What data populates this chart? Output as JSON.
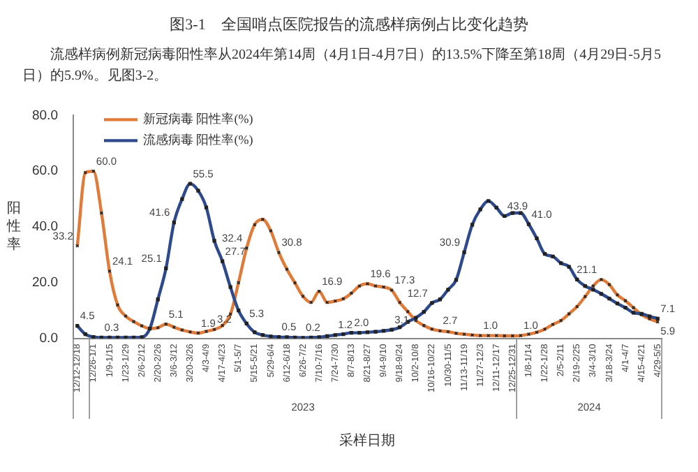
{
  "chart_data": {
    "type": "line",
    "title": "图3-1　全国哨点医院报告的流感样病例占比变化趋势",
    "subtitle": "流感样病例新冠病毒阳性率从2024年第14周（4月1日-4月7日）的13.5%下降至第18周（4月29日-5月5日）的5.9%。见图3-2。",
    "xlabel": "采样日期",
    "ylabel": "阳性率",
    "annotations": [
      "2023",
      "2024"
    ],
    "categories": [
      "12/12-12/18",
      null,
      "12/26-1/1",
      null,
      "1/9-1/15",
      null,
      "1/23-1/29",
      null,
      "2/6-2/12",
      null,
      "2/20-2/26",
      null,
      "3/6-3/12",
      null,
      "3/20-3/26",
      null,
      "4/3-4/9",
      null,
      "4/17-4/23",
      null,
      "5/1-5/7",
      null,
      "5/15-5/21",
      null,
      "5/29-6/4",
      null,
      "6/12-6/18",
      null,
      "6/26-7/2",
      null,
      "7/10-7/16",
      null,
      "7/24-7/30",
      null,
      "8/7-8/13",
      null,
      "8/21-8/27",
      null,
      "9/4-9/10",
      null,
      "9/18-9/24",
      null,
      "10/2-10/8",
      null,
      "10/16-10/22",
      null,
      "10/30-11/5",
      null,
      "11/13-11/19",
      null,
      "11/27-12/3",
      null,
      "12/11-12/17",
      null,
      "12/25-12/31",
      null,
      "1/8-1/14",
      null,
      "1/22-1/28",
      null,
      "2/5-2/11",
      null,
      "2/19-2/25",
      null,
      "3/4-3/10",
      null,
      "3/18-3/24",
      null,
      "4/1-4/7",
      null,
      "4/15-4/21",
      null,
      "4/29-5/5"
    ],
    "series": [
      {
        "name": "新冠病毒 阳性率(%)",
        "color": "#e07b39",
        "marker": "cross",
        "values": [
          33.2,
          59.5,
          60.0,
          45,
          24.1,
          12,
          8,
          6,
          4.5,
          3.5,
          3.8,
          5.1,
          4,
          3,
          2.3,
          1.9,
          2.5,
          3.2,
          4.6,
          8.7,
          20,
          32.4,
          40.8,
          42.7,
          38.6,
          30.8,
          24.8,
          19.9,
          15.1,
          12.9,
          16.9,
          12.9,
          13.4,
          14.2,
          16.2,
          18.8,
          19.6,
          18.8,
          18.4,
          17.3,
          12.9,
          9.6,
          6.4,
          4.6,
          3.3,
          2.7,
          2.4,
          1.8,
          1.5,
          1.2,
          1.0,
          1.0,
          1.0,
          0.9,
          0.9,
          1.0,
          1.5,
          2.2,
          3.3,
          5,
          6.4,
          8.8,
          11.4,
          15,
          18.8,
          21.1,
          19.3,
          15.6,
          13.5,
          11,
          8.5,
          7,
          5.9
        ],
        "value_labels": [
          "33.2",
          null,
          "60.0",
          null,
          "24.1",
          null,
          null,
          null,
          null,
          null,
          null,
          "5.1",
          null,
          null,
          null,
          "1.9",
          null,
          "3.2",
          null,
          null,
          null,
          "32.4",
          null,
          null,
          null,
          "30.8",
          null,
          null,
          null,
          null,
          "16.9",
          null,
          null,
          null,
          null,
          null,
          "19.6",
          null,
          null,
          "17.3",
          null,
          null,
          null,
          null,
          null,
          "2.7",
          null,
          null,
          null,
          null,
          "1.0",
          null,
          null,
          null,
          null,
          "1.0",
          null,
          null,
          null,
          null,
          null,
          null,
          null,
          null,
          null,
          "21.1",
          null,
          null,
          null,
          null,
          null,
          null,
          "5.9"
        ]
      },
      {
        "name": "流感病毒 阳性率(%)",
        "color": "#2e4a8c",
        "marker": "square",
        "values": [
          4.5,
          1.5,
          0.5,
          0.3,
          0.3,
          0.3,
          0.3,
          0.3,
          0.4,
          3.5,
          14,
          25.1,
          41.6,
          50,
          55.5,
          53,
          47,
          35,
          27.7,
          18.4,
          10,
          5.3,
          2.2,
          1.2,
          0.7,
          0.5,
          0.4,
          0.3,
          0.2,
          0.3,
          0.4,
          0.8,
          1.2,
          1.5,
          2.0,
          2.0,
          2.2,
          2.4,
          2.7,
          3.1,
          4,
          5.9,
          7.4,
          9.5,
          12.7,
          14,
          17.5,
          21,
          30.9,
          40.8,
          46.3,
          49.3,
          46.9,
          43.9,
          45,
          45,
          41.0,
          35.9,
          30.3,
          29.4,
          27,
          25.7,
          21.1,
          18.8,
          17.5,
          16,
          14.3,
          12.5,
          11,
          9.2,
          8.8,
          7.9,
          7.1
        ],
        "value_labels": [
          "4.5",
          null,
          null,
          "0.3",
          null,
          null,
          null,
          null,
          null,
          null,
          null,
          "25.1",
          "41.6",
          null,
          "55.5",
          null,
          null,
          null,
          "27.7",
          null,
          null,
          "5.3",
          null,
          null,
          null,
          "0.5",
          null,
          null,
          "0.2",
          null,
          null,
          null,
          "1.2",
          null,
          "2.0",
          null,
          null,
          null,
          null,
          "3.1",
          null,
          null,
          null,
          null,
          "12.7",
          null,
          null,
          null,
          "30.9",
          null,
          null,
          null,
          null,
          "43.9",
          null,
          null,
          "41.0",
          null,
          null,
          null,
          null,
          null,
          null,
          null,
          null,
          null,
          null,
          null,
          null,
          null,
          null,
          null,
          "7.1"
        ]
      }
    ],
    "ylim": [
      0,
      80
    ],
    "yticks": [
      {
        "value": 0,
        "label": "0.0"
      },
      {
        "value": 20,
        "label": "20.0"
      },
      {
        "value": 40,
        "label": "40.0"
      },
      {
        "value": 60,
        "label": "60.0"
      },
      {
        "value": 80,
        "label": "80.0"
      }
    ],
    "grid": false,
    "legend": "top left",
    "line_style": "solid"
  }
}
